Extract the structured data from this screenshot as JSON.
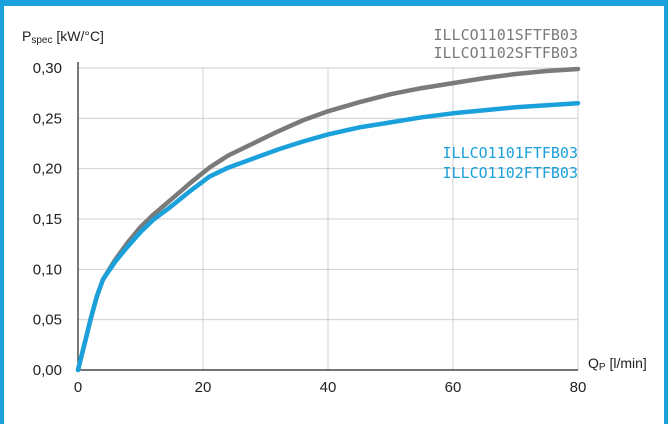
{
  "chart_data": {
    "type": "line",
    "title": "",
    "ylabel_main": "P",
    "ylabel_sub": "spec",
    "ylabel_unit": " [kW/°C]",
    "xlabel_main": "Q",
    "xlabel_sub": "P",
    "xlabel_unit": " [l/min]",
    "xlim": [
      0,
      80
    ],
    "ylim": [
      0,
      0.3
    ],
    "grid": true,
    "x_ticks": [
      {
        "value": 0,
        "label": "0"
      },
      {
        "value": 20,
        "label": "20"
      },
      {
        "value": 40,
        "label": "40"
      },
      {
        "value": 60,
        "label": "60"
      },
      {
        "value": 80,
        "label": "80"
      }
    ],
    "y_ticks": [
      {
        "value": 0.0,
        "label": "0,00"
      },
      {
        "value": 0.05,
        "label": "0,05"
      },
      {
        "value": 0.1,
        "label": "0,10"
      },
      {
        "value": 0.15,
        "label": "0,15"
      },
      {
        "value": 0.2,
        "label": "0,20"
      },
      {
        "value": 0.25,
        "label": "0,25"
      },
      {
        "value": 0.3,
        "label": "0,30"
      }
    ],
    "series": [
      {
        "labels": [
          "ILLCO1101SFTFB03",
          "ILLCO1102SFTFB03"
        ],
        "color": "#7a7a7a",
        "x": [
          0,
          1,
          2,
          3,
          4,
          6,
          8,
          10,
          12,
          15,
          18,
          21,
          24,
          28,
          32,
          36,
          40,
          45,
          50,
          55,
          60,
          65,
          70,
          75,
          80
        ],
        "y": [
          0.0,
          0.025,
          0.05,
          0.073,
          0.09,
          0.11,
          0.127,
          0.142,
          0.154,
          0.17,
          0.186,
          0.201,
          0.213,
          0.225,
          0.237,
          0.248,
          0.257,
          0.266,
          0.274,
          0.28,
          0.285,
          0.29,
          0.294,
          0.297,
          0.299
        ]
      },
      {
        "labels": [
          "ILLCO1101FTFB03",
          "ILLCO1102FTFB03"
        ],
        "color": "#1aa1dc",
        "x": [
          0,
          1,
          2,
          3,
          4,
          6,
          8,
          10,
          12,
          15,
          18,
          21,
          24,
          28,
          32,
          36,
          40,
          45,
          50,
          55,
          60,
          65,
          70,
          75,
          80
        ],
        "y": [
          0.0,
          0.025,
          0.05,
          0.073,
          0.09,
          0.108,
          0.123,
          0.137,
          0.149,
          0.163,
          0.178,
          0.192,
          0.201,
          0.21,
          0.219,
          0.227,
          0.234,
          0.241,
          0.246,
          0.251,
          0.255,
          0.258,
          0.261,
          0.263,
          0.265
        ]
      }
    ]
  }
}
